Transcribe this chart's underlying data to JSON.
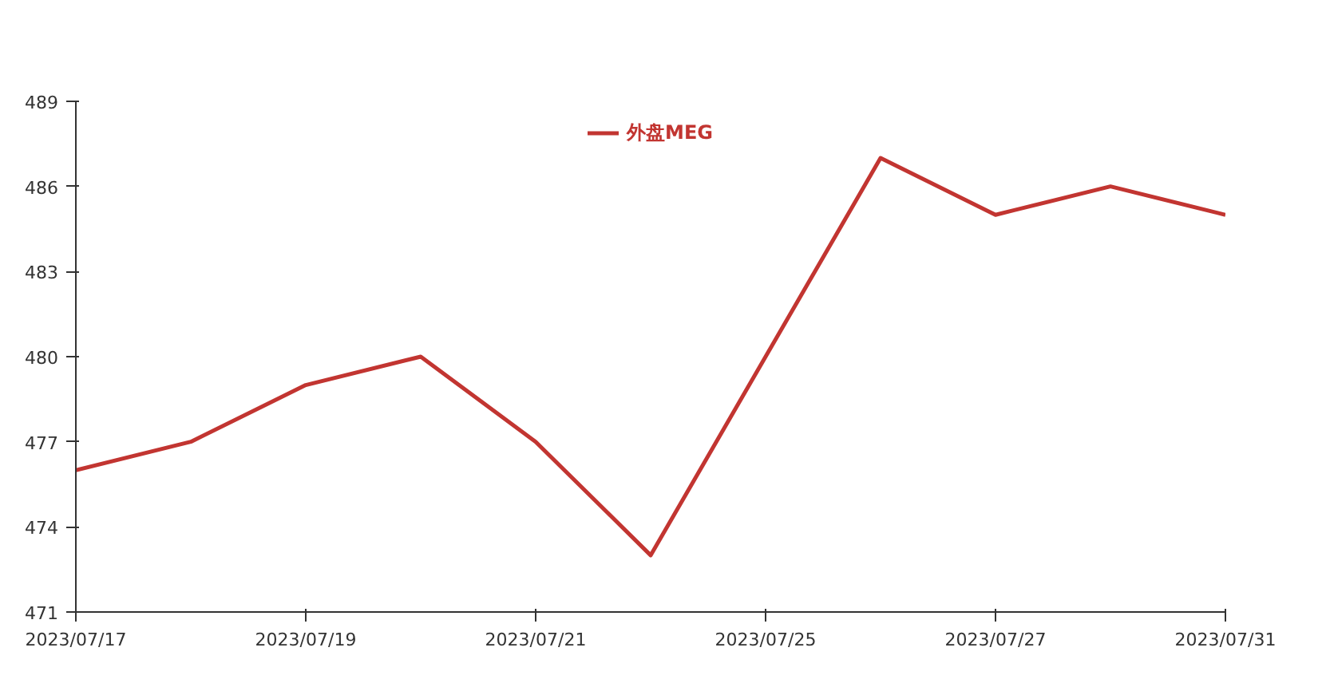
{
  "chart_data": {
    "type": "line",
    "categories": [
      "2023/07/17",
      null,
      "2023/07/19",
      null,
      "2023/07/21",
      null,
      "2023/07/25",
      null,
      "2023/07/27",
      null,
      "2023/07/31"
    ],
    "series": [
      {
        "name": "外盘MEG",
        "color": "#c23531",
        "values": [
          476,
          477,
          479,
          480,
          477,
          473,
          480,
          487,
          485,
          486,
          485
        ]
      }
    ],
    "ylim": [
      471,
      489
    ],
    "yticks": [
      471,
      474,
      477,
      480,
      483,
      486,
      489
    ],
    "grid": false,
    "legend": "top",
    "marker": "none",
    "line_style": "solid"
  }
}
